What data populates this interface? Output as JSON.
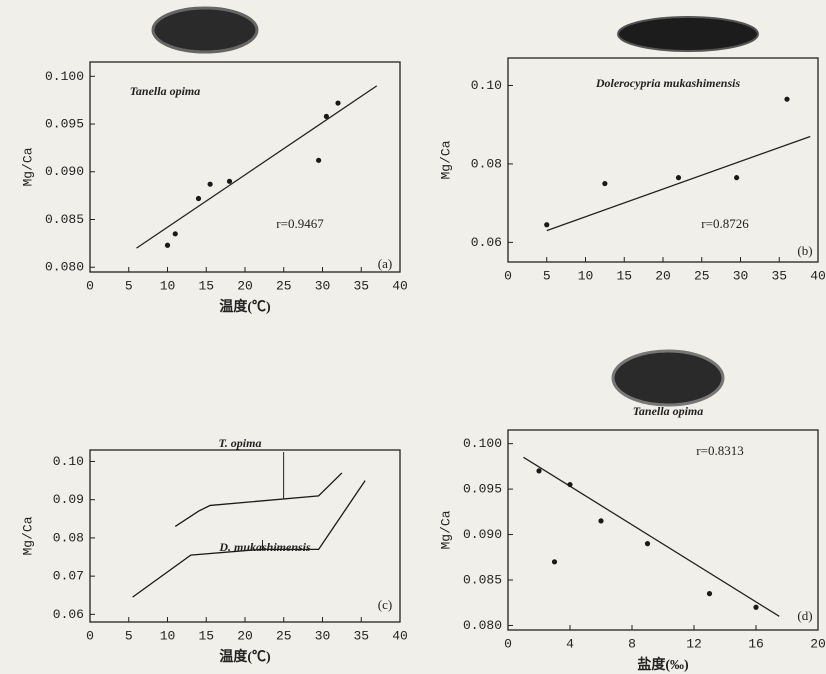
{
  "chart_data": [
    {
      "type": "scatter",
      "x_label": "温度(℃)",
      "y_label": "Mg/Ca",
      "annotation": "r=0.9467",
      "panel_label": "(a)",
      "xlim": [
        0,
        40
      ],
      "xticks": [
        0,
        5,
        10,
        15,
        20,
        25,
        30,
        35,
        40
      ],
      "ylim": [
        0.0795,
        0.1015
      ],
      "yticks": [
        {
          "value": 0.08,
          "label": "0.080"
        },
        0.085,
        {
          "value": 0.09,
          "label": "0.090"
        },
        0.095,
        {
          "value": 0.1,
          "label": "0.100"
        }
      ],
      "series": [
        {
          "name": "Tanella opima",
          "color": "#1a1a1a",
          "x": [
            10,
            11,
            14,
            15.5,
            18,
            29.5,
            30.5,
            32
          ],
          "values": [
            0.0823,
            0.0835,
            0.0872,
            0.0887,
            0.089,
            0.0912,
            0.0958,
            0.0972
          ]
        }
      ],
      "trend": {
        "x": [
          6,
          37
        ],
        "y": [
          0.082,
          0.099
        ]
      }
    },
    {
      "type": "scatter",
      "x_label": "",
      "y_label": "Mg/Ca",
      "annotation": "r=0.8726",
      "panel_label": "(b)",
      "xlim": [
        0,
        40
      ],
      "xticks": [
        0,
        5,
        10,
        15,
        20,
        25,
        30,
        35,
        40
      ],
      "ylim": [
        0.055,
        0.107
      ],
      "yticks": [
        0.06,
        0.08,
        {
          "value": 0.1,
          "label": "0.10"
        }
      ],
      "series": [
        {
          "name": "Dolerocypria mukashimensis",
          "color": "#1a1a1a",
          "x": [
            5,
            12.5,
            22,
            29.5,
            36
          ],
          "values": [
            0.0645,
            0.075,
            0.0765,
            0.0765,
            0.0965
          ]
        }
      ],
      "trend": {
        "x": [
          5,
          39
        ],
        "y": [
          0.063,
          0.087
        ]
      }
    },
    {
      "type": "line",
      "x_label": "温度(℃)",
      "y_label": "Mg/Ca",
      "panel_label": "(c)",
      "xlim": [
        0,
        40
      ],
      "xticks": [
        0,
        5,
        10,
        15,
        20,
        25,
        30,
        35,
        40
      ],
      "ylim": [
        0.058,
        0.103
      ],
      "yticks": [
        0.06,
        0.07,
        0.08,
        0.09,
        {
          "value": 0.1,
          "label": "0.10"
        }
      ],
      "series": [
        {
          "name": "T. opima",
          "color": "#1a1a1a",
          "x": [
            11,
            14,
            15.5,
            29.5,
            32.5
          ],
          "values": [
            0.083,
            0.087,
            0.0885,
            0.091,
            0.097
          ]
        },
        {
          "name": "D. mukashimensis",
          "color": "#1a1a1a",
          "x": [
            5.5,
            13,
            22,
            29.5,
            35.5
          ],
          "values": [
            0.0645,
            0.0755,
            0.077,
            0.077,
            0.095
          ]
        }
      ]
    },
    {
      "type": "scatter",
      "x_label": "盐度(‰)",
      "y_label": "Mg/Ca",
      "annotation": "r=0.8313",
      "panel_label": "(d)",
      "xlim": [
        0,
        20
      ],
      "xticks": [
        0,
        4,
        8,
        12,
        16,
        20
      ],
      "ylim": [
        0.0795,
        0.1015
      ],
      "yticks": [
        {
          "value": 0.08,
          "label": "0.080"
        },
        0.085,
        {
          "value": 0.09,
          "label": "0.090"
        },
        0.095,
        {
          "value": 0.1,
          "label": "0.100"
        }
      ],
      "series": [
        {
          "name": "Tanella opima",
          "color": "#1a1a1a",
          "x": [
            2,
            3,
            4,
            6,
            9,
            13,
            16
          ],
          "values": [
            0.097,
            0.087,
            0.0955,
            0.0915,
            0.089,
            0.0835,
            0.082
          ]
        }
      ],
      "trend": {
        "x": [
          1,
          17.5
        ],
        "y": [
          0.0985,
          0.081
        ]
      }
    }
  ]
}
